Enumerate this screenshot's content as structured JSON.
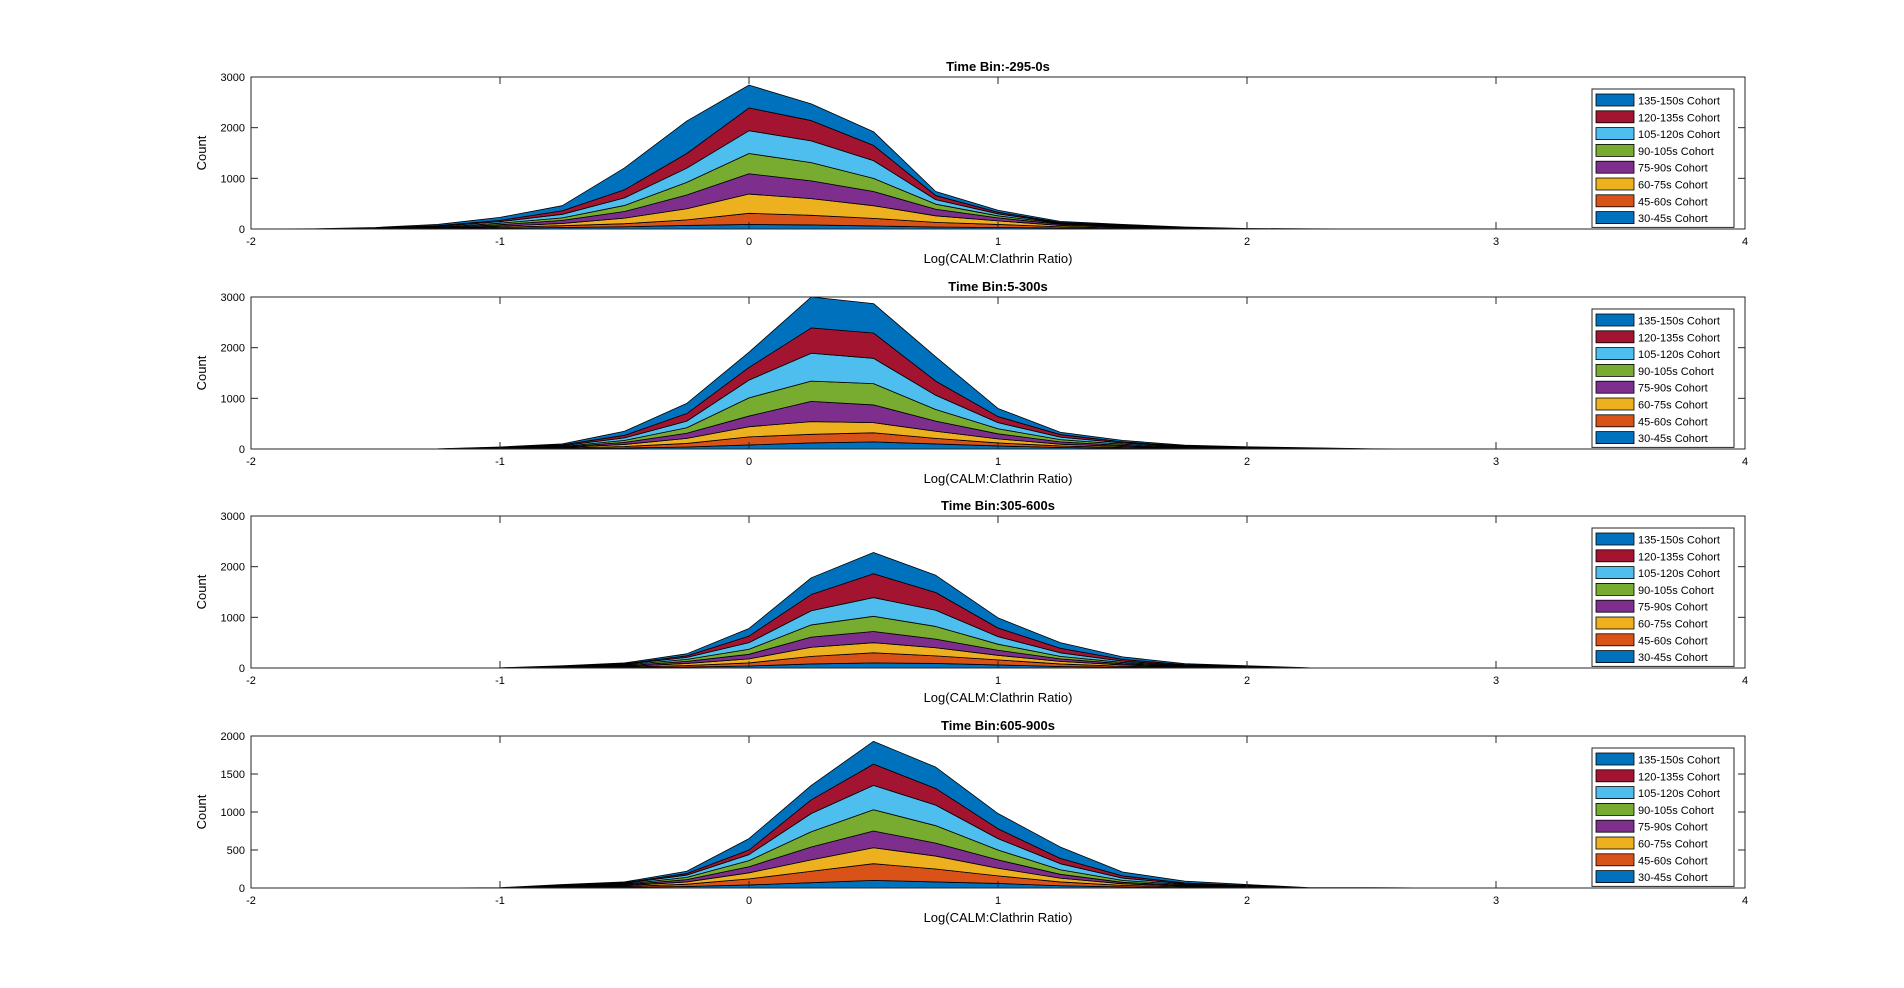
{
  "figure": {
    "colors": [
      "#0072BD",
      "#D95319",
      "#EDB120",
      "#7E2F8E",
      "#77AC30",
      "#4DBEEE",
      "#A2142F",
      "#0072BD"
    ]
  },
  "chart_data": [
    {
      "type": "area",
      "title": "Time Bin:-295-0s",
      "xlabel": "Log(CALM:Clathrin Ratio)",
      "ylabel": "Count",
      "xlim": [
        -2,
        4
      ],
      "ylim": [
        0,
        3000
      ],
      "xticks": [
        -2,
        -1,
        0,
        1,
        2,
        3,
        4
      ],
      "yticks": [
        0,
        1000,
        2000,
        3000
      ],
      "legend_position": "right",
      "x": [
        -2,
        -1.75,
        -1.5,
        -1.25,
        -1,
        -0.75,
        -0.5,
        -0.25,
        0,
        0.25,
        0.5,
        0.75,
        1,
        1.25,
        1.5,
        1.75,
        2,
        2.25,
        2.5,
        2.75,
        3,
        3.25,
        3.5,
        3.75,
        4
      ],
      "series": [
        {
          "name": "30-45s Cohort",
          "values": [
            0,
            0,
            0,
            5,
            15,
            30,
            45,
            70,
            90,
            80,
            60,
            40,
            30,
            20,
            10,
            5,
            0,
            0,
            0,
            0,
            0,
            0,
            0,
            0,
            0
          ]
        },
        {
          "name": "45-60s Cohort",
          "values": [
            0,
            0,
            0,
            5,
            20,
            35,
            60,
            110,
            220,
            190,
            150,
            90,
            60,
            25,
            10,
            5,
            0,
            0,
            0,
            0,
            0,
            0,
            0,
            0,
            0
          ]
        },
        {
          "name": "60-75s Cohort",
          "values": [
            0,
            0,
            0,
            5,
            20,
            45,
            110,
            220,
            380,
            330,
            250,
            130,
            70,
            25,
            15,
            5,
            0,
            0,
            0,
            0,
            0,
            0,
            0,
            0,
            0
          ]
        },
        {
          "name": "75-90s Cohort",
          "values": [
            0,
            0,
            5,
            10,
            30,
            60,
            130,
            270,
            400,
            350,
            280,
            130,
            60,
            25,
            15,
            5,
            0,
            0,
            0,
            0,
            0,
            0,
            0,
            0,
            0
          ]
        },
        {
          "name": "90-105s Cohort",
          "values": [
            0,
            0,
            5,
            10,
            30,
            50,
            120,
            250,
            400,
            360,
            260,
            100,
            40,
            15,
            10,
            5,
            0,
            0,
            0,
            0,
            0,
            0,
            0,
            0,
            0
          ]
        },
        {
          "name": "105-120s Cohort",
          "values": [
            0,
            0,
            5,
            15,
            30,
            70,
            150,
            280,
            450,
            430,
            350,
            90,
            40,
            10,
            10,
            5,
            5,
            0,
            0,
            0,
            0,
            0,
            0,
            0,
            0
          ]
        },
        {
          "name": "120-135s Cohort",
          "values": [
            0,
            0,
            5,
            15,
            25,
            70,
            160,
            290,
            450,
            400,
            300,
            80,
            30,
            10,
            5,
            0,
            0,
            0,
            0,
            0,
            0,
            0,
            0,
            0,
            0
          ]
        },
        {
          "name": "135-150s Cohort",
          "values": [
            0,
            5,
            10,
            25,
            60,
            100,
            430,
            640,
            450,
            330,
            270,
            80,
            40,
            20,
            15,
            10,
            5,
            5,
            0,
            0,
            0,
            0,
            0,
            0,
            0
          ]
        }
      ]
    },
    {
      "type": "area",
      "title": "Time Bin:5-300s",
      "xlabel": "Log(CALM:Clathrin Ratio)",
      "ylabel": "Count",
      "xlim": [
        -2,
        4
      ],
      "ylim": [
        0,
        3000
      ],
      "xticks": [
        -2,
        -1,
        0,
        1,
        2,
        3,
        4
      ],
      "yticks": [
        0,
        1000,
        2000,
        3000
      ],
      "legend_position": "right",
      "x": [
        -2,
        -1.75,
        -1.5,
        -1.25,
        -1,
        -0.75,
        -0.5,
        -0.25,
        0,
        0.25,
        0.5,
        0.75,
        1,
        1.25,
        1.5,
        1.75,
        2,
        2.25,
        2.5,
        2.75,
        3,
        3.25,
        3.5,
        3.75,
        4
      ],
      "series": [
        {
          "name": "30-45s Cohort",
          "values": [
            0,
            0,
            0,
            0,
            5,
            10,
            20,
            40,
            80,
            120,
            140,
            100,
            60,
            30,
            15,
            5,
            5,
            0,
            0,
            0,
            0,
            0,
            0,
            0,
            0
          ]
        },
        {
          "name": "45-60s Cohort",
          "values": [
            0,
            0,
            0,
            0,
            5,
            10,
            30,
            70,
            160,
            170,
            180,
            110,
            60,
            30,
            15,
            5,
            5,
            0,
            0,
            0,
            0,
            0,
            0,
            0,
            0
          ]
        },
        {
          "name": "60-75s Cohort",
          "values": [
            0,
            0,
            0,
            0,
            5,
            10,
            40,
            100,
            200,
            250,
            200,
            140,
            80,
            35,
            20,
            10,
            5,
            0,
            0,
            0,
            0,
            0,
            0,
            0,
            0
          ]
        },
        {
          "name": "75-90s Cohort",
          "values": [
            0,
            0,
            0,
            0,
            5,
            10,
            40,
            100,
            210,
            400,
            350,
            200,
            100,
            45,
            20,
            10,
            5,
            5,
            0,
            0,
            0,
            0,
            0,
            0,
            0
          ]
        },
        {
          "name": "90-105s Cohort",
          "values": [
            0,
            0,
            0,
            0,
            5,
            10,
            40,
            110,
            360,
            400,
            420,
            230,
            100,
            45,
            25,
            10,
            5,
            5,
            0,
            0,
            0,
            0,
            0,
            0,
            0
          ]
        },
        {
          "name": "105-120s Cohort",
          "values": [
            0,
            0,
            0,
            0,
            5,
            15,
            50,
            130,
            350,
            550,
            500,
            280,
            120,
            50,
            25,
            10,
            5,
            5,
            0,
            0,
            0,
            0,
            0,
            0,
            0
          ]
        },
        {
          "name": "120-135s Cohort",
          "values": [
            0,
            0,
            0,
            0,
            5,
            15,
            50,
            150,
            250,
            500,
            500,
            280,
            120,
            50,
            20,
            10,
            5,
            5,
            0,
            0,
            0,
            0,
            0,
            0,
            0
          ]
        },
        {
          "name": "135-150s Cohort",
          "values": [
            0,
            0,
            0,
            5,
            5,
            20,
            80,
            200,
            300,
            610,
            580,
            480,
            160,
            45,
            30,
            15,
            10,
            5,
            5,
            0,
            0,
            0,
            0,
            0,
            0
          ]
        }
      ]
    },
    {
      "type": "area",
      "title": "Time Bin:305-600s",
      "xlabel": "Log(CALM:Clathrin Ratio)",
      "ylabel": "Count",
      "xlim": [
        -2,
        4
      ],
      "ylim": [
        0,
        3000
      ],
      "xticks": [
        -2,
        -1,
        0,
        1,
        2,
        3,
        4
      ],
      "yticks": [
        0,
        1000,
        2000,
        3000
      ],
      "legend_position": "right",
      "x": [
        -2,
        -1.75,
        -1.5,
        -1.25,
        -1,
        -0.75,
        -0.5,
        -0.25,
        0,
        0.25,
        0.5,
        0.75,
        1,
        1.25,
        1.5,
        1.75,
        2,
        2.25,
        2.5,
        2.75,
        3,
        3.25,
        3.5,
        3.75,
        4
      ],
      "series": [
        {
          "name": "30-45s Cohort",
          "values": [
            0,
            0,
            0,
            0,
            0,
            5,
            10,
            20,
            40,
            80,
            100,
            90,
            60,
            30,
            15,
            5,
            5,
            0,
            0,
            0,
            0,
            0,
            0,
            0,
            0
          ]
        },
        {
          "name": "45-60s Cohort",
          "values": [
            0,
            0,
            0,
            0,
            0,
            5,
            10,
            30,
            60,
            150,
            200,
            150,
            100,
            50,
            20,
            10,
            5,
            0,
            0,
            0,
            0,
            0,
            0,
            0,
            0
          ]
        },
        {
          "name": "60-75s Cohort",
          "values": [
            0,
            0,
            0,
            0,
            0,
            5,
            10,
            40,
            80,
            180,
            200,
            160,
            90,
            50,
            25,
            10,
            5,
            0,
            0,
            0,
            0,
            0,
            0,
            0,
            0
          ]
        },
        {
          "name": "75-90s Cohort",
          "values": [
            0,
            0,
            0,
            0,
            0,
            5,
            15,
            40,
            90,
            200,
            220,
            170,
            100,
            50,
            25,
            10,
            5,
            0,
            0,
            0,
            0,
            0,
            0,
            0,
            0
          ]
        },
        {
          "name": "90-105s Cohort",
          "values": [
            0,
            0,
            0,
            0,
            0,
            5,
            15,
            40,
            100,
            240,
            300,
            250,
            120,
            50,
            25,
            10,
            5,
            0,
            0,
            0,
            0,
            0,
            0,
            0,
            0
          ]
        },
        {
          "name": "105-120s Cohort",
          "values": [
            0,
            0,
            0,
            0,
            0,
            5,
            15,
            40,
            130,
            280,
            370,
            320,
            150,
            70,
            25,
            10,
            5,
            0,
            0,
            0,
            0,
            0,
            0,
            0,
            0
          ]
        },
        {
          "name": "120-135s Cohort",
          "values": [
            0,
            0,
            0,
            0,
            0,
            5,
            10,
            30,
            130,
            320,
            470,
            350,
            170,
            90,
            35,
            10,
            5,
            0,
            0,
            0,
            0,
            0,
            0,
            0,
            0
          ]
        },
        {
          "name": "135-150s Cohort",
          "values": [
            0,
            0,
            0,
            0,
            5,
            10,
            15,
            40,
            150,
            330,
            420,
            340,
            200,
            110,
            50,
            20,
            10,
            5,
            0,
            0,
            0,
            0,
            0,
            0,
            0
          ]
        }
      ]
    },
    {
      "type": "area",
      "title": "Time Bin:605-900s",
      "xlabel": "Log(CALM:Clathrin Ratio)",
      "ylabel": "Count",
      "xlim": [
        -2,
        4
      ],
      "ylim": [
        0,
        2000
      ],
      "xticks": [
        -2,
        -1,
        0,
        1,
        2,
        3,
        4
      ],
      "yticks": [
        0,
        500,
        1000,
        1500,
        2000
      ],
      "legend_position": "right",
      "x": [
        -2,
        -1.75,
        -1.5,
        -1.25,
        -1,
        -0.75,
        -0.5,
        -0.25,
        0,
        0.25,
        0.5,
        0.75,
        1,
        1.25,
        1.5,
        1.75,
        2,
        2.25,
        2.5,
        2.75,
        3,
        3.25,
        3.5,
        3.75,
        4
      ],
      "series": [
        {
          "name": "30-45s Cohort",
          "values": [
            0,
            0,
            0,
            0,
            0,
            5,
            10,
            20,
            40,
            70,
            100,
            80,
            60,
            30,
            15,
            5,
            5,
            0,
            0,
            0,
            0,
            0,
            0,
            0,
            0
          ]
        },
        {
          "name": "45-60s Cohort",
          "values": [
            0,
            0,
            0,
            0,
            0,
            5,
            10,
            30,
            80,
            150,
            220,
            170,
            100,
            50,
            20,
            10,
            5,
            0,
            0,
            0,
            0,
            0,
            0,
            0,
            0
          ]
        },
        {
          "name": "60-75s Cohort",
          "values": [
            0,
            0,
            0,
            0,
            0,
            5,
            10,
            30,
            80,
            150,
            210,
            170,
            100,
            50,
            20,
            10,
            5,
            0,
            0,
            0,
            0,
            0,
            0,
            0,
            0
          ]
        },
        {
          "name": "75-90s Cohort",
          "values": [
            0,
            0,
            0,
            0,
            0,
            5,
            10,
            30,
            80,
            170,
            220,
            170,
            110,
            50,
            20,
            10,
            5,
            0,
            0,
            0,
            0,
            0,
            0,
            0,
            0
          ]
        },
        {
          "name": "90-105s Cohort",
          "values": [
            0,
            0,
            0,
            0,
            0,
            5,
            10,
            30,
            80,
            200,
            280,
            230,
            130,
            60,
            25,
            10,
            5,
            0,
            0,
            0,
            0,
            0,
            0,
            0,
            0
          ]
        },
        {
          "name": "105-120s Cohort",
          "values": [
            0,
            0,
            0,
            0,
            0,
            5,
            10,
            30,
            80,
            240,
            320,
            270,
            150,
            80,
            30,
            10,
            5,
            0,
            0,
            0,
            0,
            0,
            0,
            0,
            0
          ]
        },
        {
          "name": "120-135s Cohort",
          "values": [
            0,
            0,
            0,
            0,
            0,
            5,
            10,
            20,
            60,
            180,
            280,
            220,
            130,
            70,
            30,
            10,
            5,
            0,
            0,
            0,
            0,
            0,
            0,
            0,
            0
          ]
        },
        {
          "name": "135-150s Cohort",
          "values": [
            0,
            0,
            0,
            0,
            5,
            10,
            10,
            30,
            150,
            190,
            300,
            280,
            200,
            150,
            50,
            25,
            10,
            5,
            5,
            0,
            0,
            0,
            0,
            0,
            0
          ]
        }
      ]
    }
  ]
}
